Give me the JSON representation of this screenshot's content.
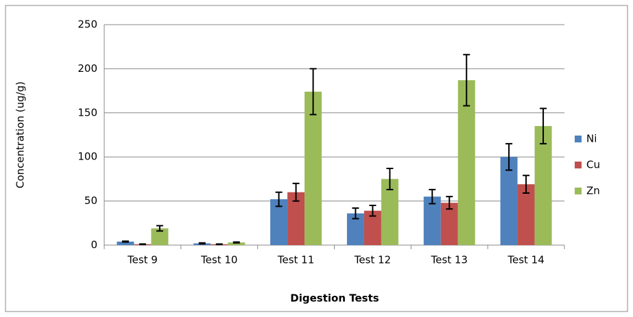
{
  "chart_data": {
    "type": "bar",
    "x_label": "Digestion Tests",
    "y_label": "Concentration (ug/g)",
    "categories": [
      "Test 9",
      "Test 10",
      "Test 11",
      "Test 12",
      "Test 13",
      "Test 14"
    ],
    "series": [
      {
        "name": "Ni",
        "color": "#4f81bd",
        "values": [
          4,
          2,
          52,
          36,
          55,
          100
        ],
        "errors": [
          0.5,
          0.5,
          8,
          6,
          8,
          15
        ]
      },
      {
        "name": "Cu",
        "color": "#c0504d",
        "values": [
          1,
          1,
          60,
          39,
          48,
          69
        ],
        "errors": [
          0.3,
          0.3,
          10,
          6,
          7,
          10
        ]
      },
      {
        "name": "Zn",
        "color": "#9bbb59",
        "values": [
          19,
          3,
          174,
          75,
          187,
          135
        ],
        "errors": [
          3,
          0.5,
          26,
          12,
          29,
          20
        ]
      }
    ],
    "ylim": [
      0,
      250
    ],
    "yticks": [
      0,
      50,
      100,
      150,
      200,
      250
    ],
    "grid": true,
    "legend": "right"
  }
}
